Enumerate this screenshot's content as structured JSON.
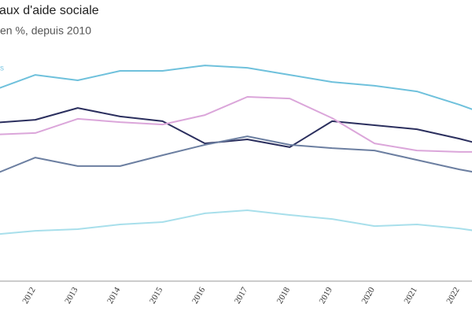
{
  "chart_data": {
    "type": "line",
    "title": "aux d'aide sociale",
    "subtitle": "en %, depuis 2010",
    "annotation": "s",
    "annotation_color": "#7ec8e3",
    "categories": [
      null,
      "2012",
      "2013",
      "2014",
      "2015",
      "2016",
      "2017",
      "2018",
      "2019",
      "2020",
      "2021",
      "2022",
      null
    ],
    "series": [
      {
        "color": "#6fc1dc",
        "values": [
          8.17,
          8.83,
          8.6,
          9.0,
          9.0,
          9.23,
          9.13,
          8.83,
          8.53,
          8.37,
          8.13,
          7.57,
          6.93
        ]
      },
      {
        "color": "#2b2f5e",
        "values": [
          6.8,
          6.93,
          7.43,
          7.07,
          6.87,
          5.93,
          6.1,
          5.77,
          6.87,
          6.7,
          6.53,
          6.13,
          5.67
        ]
      },
      {
        "color": "#dba6da",
        "values": [
          6.3,
          6.37,
          6.97,
          6.83,
          6.73,
          7.13,
          7.9,
          7.83,
          7.0,
          5.93,
          5.63,
          5.57,
          5.57
        ]
      },
      {
        "color": "#6c7fa1",
        "values": [
          4.6,
          5.33,
          4.97,
          4.97,
          5.43,
          5.87,
          6.23,
          5.87,
          5.73,
          5.63,
          5.23,
          4.83,
          4.5
        ]
      },
      {
        "color": "#a8dfeb",
        "values": [
          2.07,
          2.23,
          2.3,
          2.5,
          2.6,
          2.97,
          3.1,
          2.9,
          2.73,
          2.43,
          2.5,
          2.33,
          2.07
        ]
      }
    ],
    "ylim": [
      0,
      11
    ],
    "grid": false
  }
}
